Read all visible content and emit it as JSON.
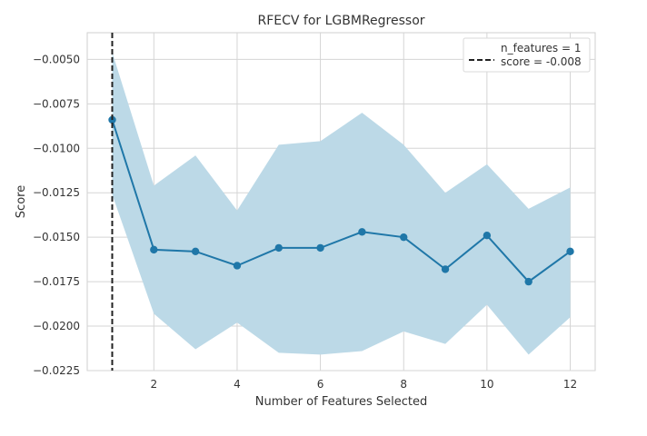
{
  "chart_data": {
    "type": "line",
    "title": "RFECV for LGBMRegressor",
    "xlabel": "Number of Features Selected",
    "ylabel": "Score",
    "xlim": [
      0.4,
      12.6
    ],
    "ylim": [
      -0.0225,
      -0.0035
    ],
    "xticks": [
      2,
      4,
      6,
      8,
      10,
      12
    ],
    "yticks": [
      -0.005,
      -0.0075,
      -0.01,
      -0.0125,
      -0.015,
      -0.0175,
      -0.02,
      -0.0225
    ],
    "ytick_labels": [
      "−0.0050",
      "−0.0075",
      "−0.0100",
      "−0.0125",
      "−0.0150",
      "−0.0175",
      "−0.0200",
      "−0.0225"
    ],
    "grid": true,
    "legend_position": "top-right",
    "series": [
      {
        "x": [
          1,
          2,
          3,
          4,
          5,
          6,
          7,
          8,
          9,
          10,
          11,
          12
        ],
        "values": [
          -0.0084,
          -0.0157,
          -0.0158,
          -0.0166,
          -0.0156,
          -0.0156,
          -0.0147,
          -0.015,
          -0.0168,
          -0.0149,
          -0.0175,
          -0.0158
        ],
        "upper": [
          -0.0046,
          -0.0121,
          -0.0104,
          -0.0135,
          -0.0098,
          -0.0096,
          -0.008,
          -0.0098,
          -0.0125,
          -0.0109,
          -0.0134,
          -0.0122
        ],
        "lower": [
          -0.0126,
          -0.0193,
          -0.0213,
          -0.0198,
          -0.0215,
          -0.0216,
          -0.0214,
          -0.0203,
          -0.021,
          -0.0188,
          -0.0216,
          -0.0195
        ],
        "color": "#1f77a8",
        "band_color": "#bcd9e7"
      }
    ],
    "selected": {
      "x": 1,
      "legend_line1": "n_features = 1",
      "legend_line2": "score = -0.008",
      "line_color": "#222222"
    }
  }
}
